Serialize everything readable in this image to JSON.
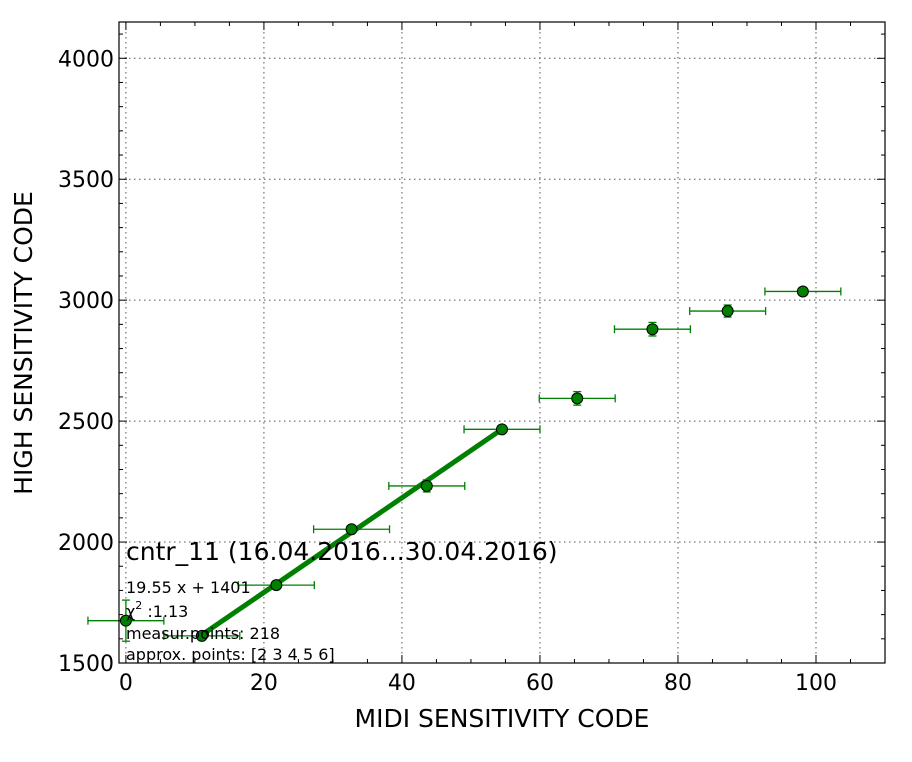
{
  "chart_data": {
    "type": "scatter",
    "xlabel": "MIDI SENSITIVITY CODE",
    "ylabel": "HIGH SENSITIVITY CODE",
    "xlim": [
      -1,
      110
    ],
    "ylim": [
      1500,
      4150
    ],
    "xticks": [
      0,
      20,
      40,
      60,
      80,
      100
    ],
    "yticks": [
      1500,
      2000,
      2500,
      3000,
      3500,
      4000
    ],
    "grid": true,
    "marker_color": "#008000",
    "fit_color": "#008000",
    "points": [
      {
        "x": 0.0,
        "y": 1675,
        "xerr": 5.5,
        "yerr": 85
      },
      {
        "x": 11.0,
        "y": 1612,
        "xerr": 5.5,
        "yerr": 15
      },
      {
        "x": 21.8,
        "y": 1822,
        "xerr": 5.5,
        "yerr": 15
      },
      {
        "x": 32.7,
        "y": 2053,
        "xerr": 5.5,
        "yerr": 15
      },
      {
        "x": 43.6,
        "y": 2232,
        "xerr": 5.5,
        "yerr": 25
      },
      {
        "x": 54.5,
        "y": 2466,
        "xerr": 5.5,
        "yerr": 15
      },
      {
        "x": 65.4,
        "y": 2594,
        "xerr": 5.5,
        "yerr": 28
      },
      {
        "x": 76.3,
        "y": 2880,
        "xerr": 5.5,
        "yerr": 28
      },
      {
        "x": 87.2,
        "y": 2955,
        "xerr": 5.5,
        "yerr": 25
      },
      {
        "x": 98.1,
        "y": 3036,
        "xerr": 5.5,
        "yerr": 15
      }
    ],
    "fit": {
      "slope": 19.55,
      "intercept": 1401,
      "x_range": [
        11.0,
        54.5
      ]
    },
    "annotations": {
      "title": "cntr_11 (16.04.2016...30.04.2016)",
      "equation": "19.55 x + 1401",
      "chi_symbol": "χ",
      "chi_exp": "2",
      "chi_value": " :1.13",
      "measur_points": "measur.points: 218",
      "approx_points": "approx. points: [2 3 4 5 6]"
    }
  }
}
